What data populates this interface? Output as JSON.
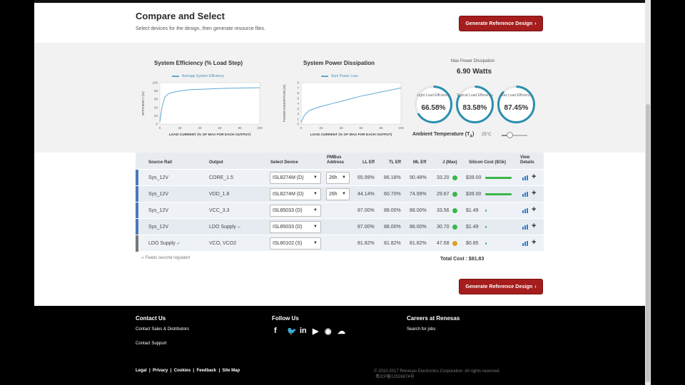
{
  "header": {
    "title": "Compare and Select",
    "subtitle": "Select devices for the design, then generate resource files.",
    "generate_button": "Generate Reference Design"
  },
  "efficiency_chart": {
    "chart_data": {
      "type": "line",
      "title": "System Efficiency (% Load Step)",
      "legend": "Average System Efficiency",
      "xlabel": "LOAD CURRENT (% OF MAX FOR EACH OUTPUT)",
      "ylabel": "EFFICIENCY (%)",
      "xlim": [
        0,
        100
      ],
      "ylim": [
        0,
        100
      ],
      "xticks": [
        "0",
        "20",
        "40",
        "60",
        "80",
        "100"
      ],
      "yticks": [
        "0",
        "20",
        "40",
        "60",
        "80",
        "100"
      ],
      "x": [
        0,
        2,
        5,
        8,
        12,
        20,
        30,
        40,
        50,
        60,
        70,
        80,
        90,
        100
      ],
      "y": [
        5,
        40,
        65,
        72,
        76,
        80,
        83,
        84,
        85,
        86,
        86.5,
        87,
        87.5,
        88
      ]
    }
  },
  "power_chart": {
    "chart_data": {
      "type": "line",
      "title": "System Power Dissipation",
      "legend": "Sum Power Loss",
      "xlabel": "LOAD CURRENT (% OF MAX FOR EACH OUTPUT)",
      "ylabel": "POWER DISSIPATION (W)",
      "xlim": [
        0,
        100
      ],
      "ylim": [
        0,
        8
      ],
      "xticks": [
        "0",
        "20",
        "40",
        "60",
        "80",
        "100"
      ],
      "yticks": [
        "0",
        "1",
        "2",
        "3",
        "4",
        "5",
        "6",
        "7",
        "8"
      ],
      "x": [
        0,
        3,
        8,
        15,
        20,
        30,
        40,
        50,
        60,
        70,
        80,
        90,
        100
      ],
      "y": [
        0.3,
        1.6,
        2.6,
        3.1,
        3.4,
        3.9,
        4.4,
        4.9,
        5.4,
        5.8,
        6.2,
        6.6,
        7.0
      ]
    }
  },
  "summary": {
    "max_power_label": "Max Power Dissipation",
    "max_power_value": "6.90 Watts",
    "gauges": [
      {
        "label": "Light Load Efficiency",
        "value": "66.58%",
        "pct": 66.58
      },
      {
        "label": "Typical Load Efficiency",
        "value": "83.58%",
        "pct": 83.58
      },
      {
        "label": "Max Load Efficiency",
        "value": "87.45%",
        "pct": 87.45
      }
    ],
    "ambient_label": "Ambient Temperature (T",
    "ambient_sub": "A",
    "ambient_close": ")",
    "ambient_value": "25°C",
    "ambient_fraction": 0.3
  },
  "table": {
    "headers": {
      "source_rail": "Source Rail",
      "output": "Output",
      "select_device": "Select Device",
      "pmbus": "PMBus",
      "pmbus2": "Address",
      "ll_eff": "LL Eff",
      "tl_eff": "TL Eff",
      "ml_eff": "ML Eff",
      "j_max": "J (Max)",
      "silicon_cost": "Silicon Cost ($/1k)",
      "view": "View",
      "details": "Details"
    },
    "rows": [
      {
        "source": "Sys_12V",
        "output": "CORE_1.5",
        "device": "ISL8274M (D)",
        "pmbus": "26h",
        "ll": "65.99%",
        "tl": "86.18%",
        "ml": "90.48%",
        "j": "33.20",
        "jcolor": "#3cb54a",
        "cost": "$39.00",
        "cost_bar": 1.0
      },
      {
        "source": "Sys_12V",
        "output": "VDD_1.8",
        "device": "ISL8274M (D)",
        "pmbus": "26h",
        "ll": "44.14%",
        "tl": "60.70%",
        "ml": "74.99%",
        "j": "29.87",
        "jcolor": "#3cb54a",
        "cost": "$39.00",
        "cost_bar": 1.0
      },
      {
        "source": "Sys_12V",
        "output": "VCC_3.3",
        "device": "ISL85033 (D)",
        "pmbus": "",
        "ll": "87.00%",
        "tl": "88.00%",
        "ml": "88.00%",
        "j": "33.56",
        "jcolor": "#3cb54a",
        "cost": "$1.49",
        "cost_bar": 0.04
      },
      {
        "source": "Sys_12V",
        "output": "LDO Supply",
        "device": "ISL85033 (D)",
        "pmbus": "",
        "ll": "87.00%",
        "tl": "88.00%",
        "ml": "88.00%",
        "j": "30.70",
        "jcolor": "#3cb54a",
        "cost": "$1.49",
        "cost_bar": 0.04
      },
      {
        "source": "LDO Supply",
        "output": "VCO, VCO2",
        "device": "ISL80102 (S)",
        "pmbus": "",
        "ll": "81.82%",
        "tl": "81.82%",
        "ml": "81.82%",
        "j": "47.68",
        "jcolor": "#e0a020",
        "cost": "$0.85",
        "cost_bar": 0.02
      }
    ],
    "footnote": "Feeds second regulator",
    "total": "Total Cost : $81.83"
  },
  "footer": {
    "contact_title": "Contact Us",
    "contact_sales": "Contact Sales & Distributors",
    "contact_support": "Contact Support",
    "follow_title": "Follow Us",
    "careers_title": "Careers at Renesas",
    "search_jobs": "Search for jobs",
    "legal": "Legal",
    "privacy": "Privacy",
    "cookies": "Cookies",
    "feedback": "Feedback",
    "sitemap": "Site Map",
    "copyright": "© 2010-2017 Renesas Electronics Corporation. All rights reserved.",
    "icp": "粤ICP备12026874号"
  }
}
